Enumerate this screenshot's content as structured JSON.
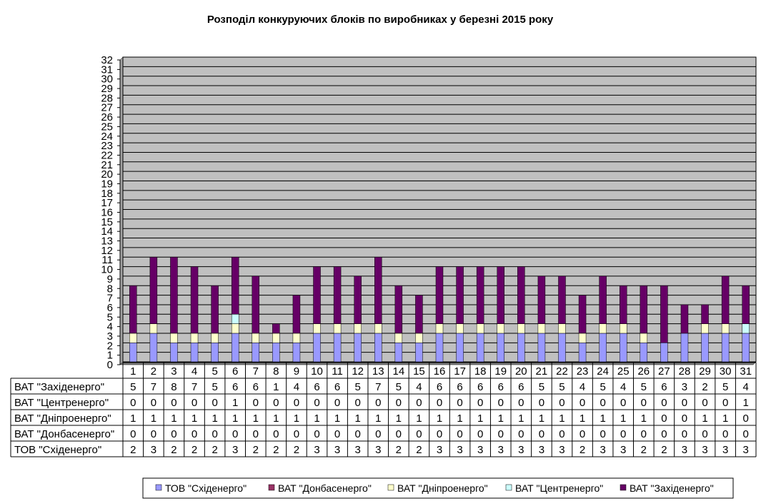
{
  "chart_data": {
    "type": "bar",
    "stacked": true,
    "title": "Розподіл конкуруючих блоків по виробниках у березні 2015 року",
    "xlabel": "",
    "ylabel": "",
    "ylim": [
      0,
      32
    ],
    "grid": true,
    "legend_position": "bottom",
    "show_data_table": true,
    "categories": [
      "1",
      "2",
      "3",
      "4",
      "5",
      "6",
      "7",
      "8",
      "9",
      "10",
      "11",
      "12",
      "13",
      "14",
      "15",
      "16",
      "17",
      "18",
      "19",
      "20",
      "21",
      "22",
      "23",
      "24",
      "25",
      "26",
      "27",
      "28",
      "29",
      "30",
      "31"
    ],
    "series": [
      {
        "name": "ТОВ \"Східенерго\"",
        "color": "#9999ff",
        "values": [
          2,
          3,
          2,
          2,
          2,
          3,
          2,
          2,
          2,
          3,
          3,
          3,
          3,
          2,
          2,
          3,
          3,
          3,
          3,
          3,
          3,
          3,
          2,
          3,
          3,
          2,
          2,
          3,
          3,
          3,
          3
        ]
      },
      {
        "name": "ВАТ \"Донбасенерго\"",
        "color": "#993366",
        "values": [
          0,
          0,
          0,
          0,
          0,
          0,
          0,
          0,
          0,
          0,
          0,
          0,
          0,
          0,
          0,
          0,
          0,
          0,
          0,
          0,
          0,
          0,
          0,
          0,
          0,
          0,
          0,
          0,
          0,
          0,
          0
        ]
      },
      {
        "name": "ВАТ \"Дніпроенерго\"",
        "color": "#ffffcc",
        "values": [
          1,
          1,
          1,
          1,
          1,
          1,
          1,
          1,
          1,
          1,
          1,
          1,
          1,
          1,
          1,
          1,
          1,
          1,
          1,
          1,
          1,
          1,
          1,
          1,
          1,
          1,
          0,
          0,
          1,
          1,
          0
        ]
      },
      {
        "name": "ВАТ \"Центренерго\"",
        "color": "#ccffff",
        "values": [
          0,
          0,
          0,
          0,
          0,
          1,
          0,
          0,
          0,
          0,
          0,
          0,
          0,
          0,
          0,
          0,
          0,
          0,
          0,
          0,
          0,
          0,
          0,
          0,
          0,
          0,
          0,
          0,
          0,
          0,
          1
        ]
      },
      {
        "name": "ВАТ \"Західенерго\"",
        "color": "#660066",
        "values": [
          5,
          7,
          8,
          7,
          5,
          6,
          6,
          1,
          4,
          6,
          6,
          5,
          7,
          5,
          4,
          6,
          6,
          6,
          6,
          6,
          5,
          5,
          4,
          5,
          4,
          5,
          6,
          3,
          2,
          5,
          4
        ]
      }
    ],
    "table_row_order": [
      4,
      3,
      2,
      1,
      0
    ],
    "plot_bg": "#c0c0c0"
  }
}
